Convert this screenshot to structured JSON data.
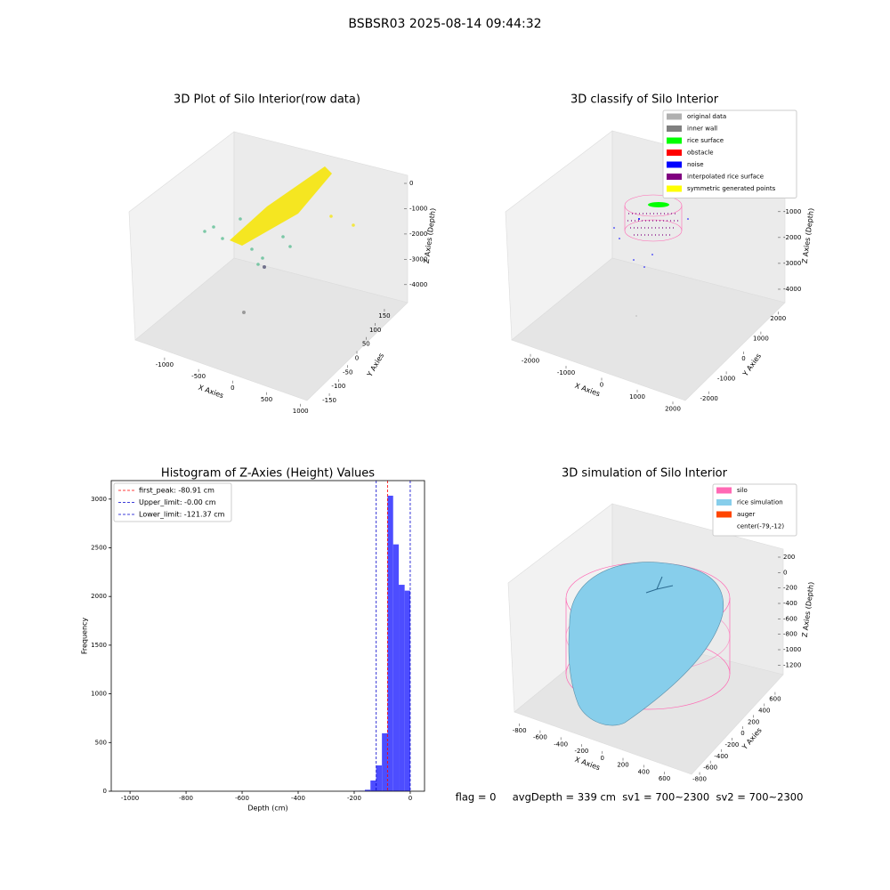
{
  "title": "BSBSR03 2025-08-14 09:44:32",
  "footer": "flag = 0     avgDepth = 339 cm  sv1 = 700~2300  sv2 = 700~2300",
  "chart_data": [
    {
      "type": "scatter3d",
      "title": "3D Plot of Silo Interior(row data)",
      "xlabel": "X Axies",
      "ylabel": "Y Axies",
      "zlabel": "Z Axies (Depth)",
      "xlim": [
        -1300,
        1200
      ],
      "xticks": [
        -1000,
        -500,
        0,
        500,
        1000
      ],
      "ylim": [
        -160,
        160
      ],
      "yticks": [
        -150,
        -100,
        -50,
        0,
        50,
        100,
        150
      ],
      "zlim": [
        -4500,
        300
      ],
      "zticks": [
        0,
        -1000,
        -2000,
        -3000,
        -4000
      ]
    },
    {
      "type": "scatter3d",
      "title": "3D classify of Silo Interior",
      "xlabel": "X Axies",
      "ylabel": "Y Axies",
      "zlabel": "Z Axies (Depth)",
      "xlim": [
        -2500,
        2500
      ],
      "xticks": [
        -2000,
        -1000,
        0,
        1000,
        2000
      ],
      "ylim": [
        -2500,
        2500
      ],
      "yticks": [
        -2000,
        -1000,
        0,
        1000,
        2000
      ],
      "zlim": [
        -4500,
        300
      ],
      "zticks": [
        -1000,
        -2000,
        -3000,
        -4000
      ],
      "legend": [
        {
          "name": "original data",
          "color": "#b0b0b0"
        },
        {
          "name": "inner wall",
          "color": "#808080"
        },
        {
          "name": "rice surface",
          "color": "#00ff00"
        },
        {
          "name": "obstacle",
          "color": "#ff0000"
        },
        {
          "name": "noise",
          "color": "#0000ff"
        },
        {
          "name": "interpolated rice surface",
          "color": "#800080"
        },
        {
          "name": "symmetric generated points",
          "color": "#ffff00"
        }
      ]
    },
    {
      "type": "histogram",
      "title": "Histogram of Z-Axies (Height) Values",
      "xlabel": "Depth (cm)",
      "ylabel": "Frequency",
      "color": "#4d4dff",
      "bins": [
        -203,
        -183,
        -162,
        -142,
        -122,
        -101,
        -81,
        -61,
        -41,
        -20,
        0
      ],
      "counts": [
        3,
        5,
        15,
        110,
        265,
        595,
        3035,
        2535,
        2120,
        2060
      ],
      "xlim": [
        -1067,
        51
      ],
      "xticks": [
        -1000,
        -800,
        -600,
        -400,
        -200,
        0
      ],
      "ylim": [
        0,
        3190
      ],
      "yticks": [
        0,
        500,
        1000,
        1500,
        2000,
        2500,
        3000
      ],
      "lines": [
        {
          "name": "first_peak: -80.91 cm",
          "value": -80.91,
          "color": "#ff0000"
        },
        {
          "name": "Upper_limit: -0.00 cm",
          "value": 0,
          "color": "#0000cc"
        },
        {
          "name": "Lower_limit: -121.37 cm",
          "value": -121.37,
          "color": "#0000cc"
        }
      ]
    },
    {
      "type": "surface3d",
      "title": "3D simulation of Silo Interior",
      "xlabel": "X Axies",
      "ylabel": "Y Axies",
      "zlabel": "Z Axies (Depth)",
      "xlim": [
        -900,
        750
      ],
      "xticks": [
        -800,
        -600,
        -400,
        -200,
        0,
        200,
        400,
        600
      ],
      "ylim": [
        -900,
        750
      ],
      "yticks": [
        -800,
        -600,
        -400,
        -200,
        0,
        200,
        400,
        600
      ],
      "zlim": [
        -1300,
        350
      ],
      "zticks": [
        200,
        0,
        -200,
        -400,
        -600,
        -800,
        -1000,
        -1200
      ],
      "legend": [
        {
          "name": "silo",
          "color": "#ff69b4"
        },
        {
          "name": "rice simulation",
          "color": "#87ceeb"
        },
        {
          "name": "auger",
          "color": "#ff4500"
        },
        {
          "name": "center(-79,-12)"
        }
      ]
    }
  ]
}
